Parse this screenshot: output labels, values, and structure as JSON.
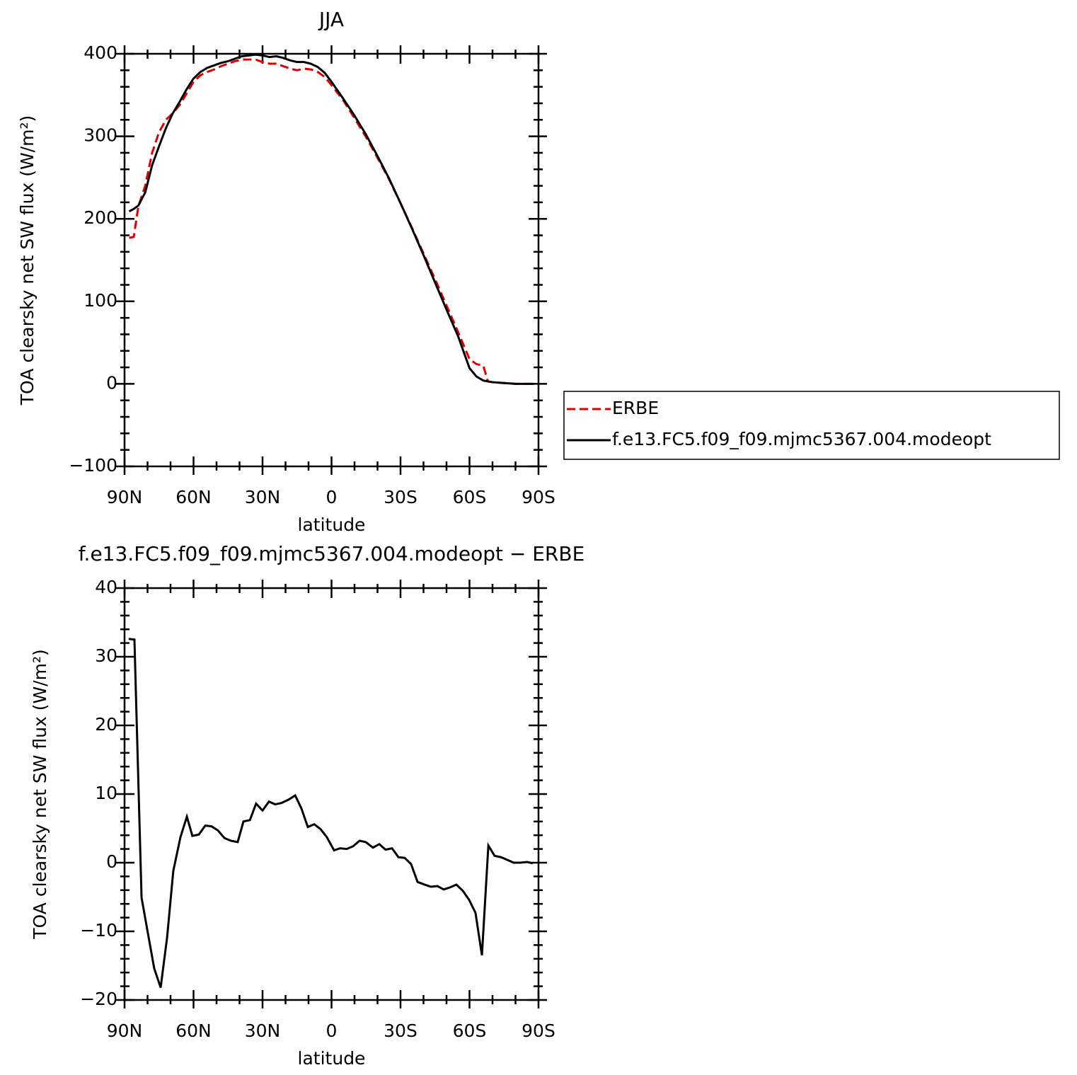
{
  "chart_data": [
    {
      "type": "line",
      "title": "JJA",
      "xlabel": "latitude",
      "ylabel": "TOA clearsky net SW flux (W/m²)",
      "xlim": [
        90,
        -90
      ],
      "xticks": [
        {
          "value": 90,
          "label": "90N"
        },
        {
          "value": 60,
          "label": "60N"
        },
        {
          "value": 30,
          "label": "30N"
        },
        0,
        {
          "value": -30,
          "label": "30S"
        },
        {
          "value": -60,
          "label": "60S"
        },
        {
          "value": -90,
          "label": "90S"
        }
      ],
      "ylim": [
        -100,
        400
      ],
      "yticks": [
        {
          "value": -100,
          "label": "−100"
        },
        0,
        100,
        200,
        300,
        400
      ],
      "legend": "outside right",
      "x": [
        88,
        86,
        84,
        81,
        78,
        75,
        72,
        69,
        66,
        63,
        60,
        57,
        54,
        51,
        48,
        45,
        42,
        39,
        36,
        33,
        30,
        27,
        24,
        21,
        18,
        15,
        12,
        9,
        6,
        3,
        0,
        -5,
        -10,
        -15,
        -20,
        -25,
        -30,
        -35,
        -40,
        -45,
        -50,
        -55,
        -60,
        -63,
        -66,
        -68,
        -70,
        -75,
        -80,
        -85,
        -88
      ],
      "series": [
        {
          "name": "ERBE",
          "color": "#e00000",
          "style": "dashed",
          "values": [
            177,
            178,
            215,
            240,
            280,
            305,
            320,
            328,
            338,
            352,
            366,
            374,
            378,
            381,
            385,
            388,
            391,
            393,
            393,
            393,
            390,
            388,
            388,
            385,
            382,
            380,
            382,
            381,
            378,
            372,
            362,
            344,
            322,
            299,
            274,
            248,
            219,
            189,
            158,
            127,
            95,
            63,
            30,
            24,
            22,
            3,
            2,
            1,
            0,
            0,
            0
          ]
        },
        {
          "name": "f.e13.FC5.f09_f09.mjmc5367.004.modeopt",
          "color": "#000000",
          "style": "solid",
          "values": [
            209,
            212,
            216,
            232,
            265,
            288,
            310,
            328,
            342,
            357,
            370,
            378,
            383,
            386,
            389,
            391,
            394,
            397,
            398,
            399,
            398,
            396,
            397,
            395,
            392,
            390,
            390,
            388,
            384,
            377,
            366,
            346,
            325,
            302,
            276,
            249,
            219,
            188,
            156,
            123,
            90,
            58,
            19,
            9,
            4,
            3,
            2,
            1,
            0,
            0,
            0
          ]
        }
      ]
    },
    {
      "type": "line",
      "title": "f.e13.FC5.f09_f09.mjmc5367.004.modeopt − ERBE",
      "xlabel": "latitude",
      "ylabel": "TOA clearsky net SW flux (W/m²)",
      "xlim": [
        90,
        -90
      ],
      "xticks": [
        {
          "value": 90,
          "label": "90N"
        },
        {
          "value": 60,
          "label": "60N"
        },
        {
          "value": 30,
          "label": "30N"
        },
        0,
        {
          "value": -30,
          "label": "30S"
        },
        {
          "value": -60,
          "label": "60S"
        },
        {
          "value": -90,
          "label": "90S"
        }
      ],
      "ylim": [
        -20,
        40
      ],
      "yticks": [
        {
          "value": -20,
          "label": "−20"
        },
        {
          "value": -10,
          "label": "−10"
        },
        0,
        10,
        20,
        30,
        40
      ],
      "color": "#000000",
      "x": [
        88.2,
        85.7,
        82.6,
        80.2,
        77.1,
        74.3,
        71.5,
        68.8,
        65.7,
        62.9,
        60.5,
        57.7,
        54.9,
        52.2,
        49.4,
        46.6,
        43.8,
        40.8,
        38.3,
        35.5,
        32.8,
        30.0,
        27.2,
        24.5,
        21.7,
        18.6,
        15.8,
        13.1,
        10.3,
        7.5,
        4.8,
        2.0,
        -1.1,
        -3.8,
        -6.6,
        -9.4,
        -12.2,
        -14.9,
        -18.0,
        -20.8,
        -23.5,
        -26.3,
        -29.1,
        -31.8,
        -34.6,
        -37.4,
        -40.5,
        -43.2,
        -46.0,
        -48.8,
        -51.5,
        -54.3,
        -57.1,
        -59.8,
        -62.6,
        -65.4,
        -68.2,
        -70.9,
        -73.7,
        -76.5,
        -79.2,
        -82.0,
        -85.1,
        -87.5
      ],
      "values": [
        32.6,
        32.5,
        -5.1,
        -9.6,
        -15.4,
        -18.2,
        -10.9,
        -1.2,
        3.7,
        6.7,
        3.9,
        4.1,
        5.4,
        5.3,
        4.7,
        3.6,
        3.2,
        3.0,
        6.0,
        6.2,
        8.6,
        7.6,
        8.9,
        8.5,
        8.7,
        9.2,
        9.8,
        7.9,
        5.2,
        5.6,
        4.9,
        3.7,
        1.8,
        2.1,
        2.0,
        2.4,
        3.2,
        3.0,
        2.2,
        2.7,
        1.9,
        2.1,
        0.8,
        0.7,
        -0.2,
        -2.8,
        -3.2,
        -3.5,
        -3.4,
        -3.9,
        -3.6,
        -3.2,
        -4.1,
        -5.4,
        -7.3,
        -13.5,
        2.5,
        1.0,
        0.8,
        0.4,
        0.0,
        0.0,
        0.1,
        -0.1
      ]
    }
  ]
}
